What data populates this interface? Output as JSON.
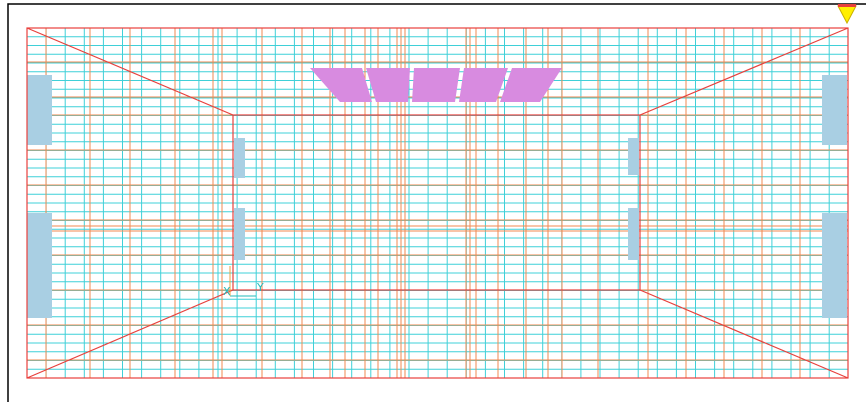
{
  "viewport": {
    "ucs_x_label": "X",
    "ucs_y_label": "Y"
  }
}
